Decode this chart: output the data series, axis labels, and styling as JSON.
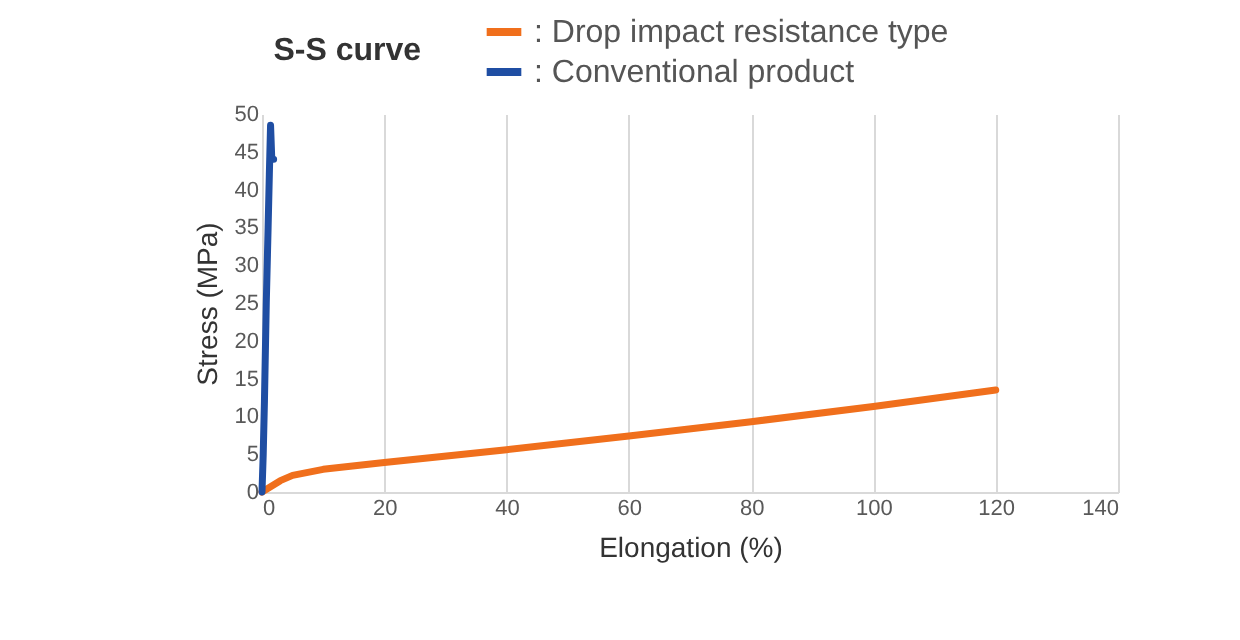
{
  "chart_data": {
    "type": "line",
    "title": "S-S curve",
    "xlabel": "Elongation (%)",
    "ylabel": "Stress (MPa)",
    "xlim": [
      0,
      140
    ],
    "xticks": [
      0,
      20,
      40,
      60,
      80,
      100,
      120,
      140
    ],
    "ylim": [
      0,
      50
    ],
    "yticks": [
      0,
      5,
      10,
      15,
      20,
      25,
      30,
      35,
      40,
      45,
      50
    ],
    "grid": "x",
    "legend": "top right",
    "line_style": "solid",
    "marker": "none",
    "series": [
      {
        "name": ": Drop impact resistance type",
        "color": "#f06f1c",
        "x": [
          0,
          1,
          2,
          3,
          5,
          10,
          20,
          40,
          60,
          80,
          100,
          120
        ],
        "values": [
          0,
          0.5,
          1,
          1.5,
          2.2,
          3,
          3.9,
          5.6,
          7.4,
          9.3,
          11.3,
          13.5
        ]
      },
      {
        "name": ": Conventional product",
        "color": "#1f4ea3",
        "x": [
          0,
          0.2,
          0.4,
          0.7,
          1,
          1.2,
          1.4,
          1.6,
          1.9
        ],
        "values": [
          0,
          5,
          12,
          25,
          35,
          42,
          48.5,
          44,
          44
        ]
      }
    ]
  }
}
